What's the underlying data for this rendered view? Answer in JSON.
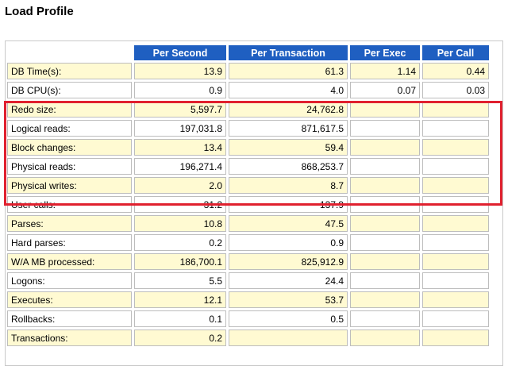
{
  "title": "Load Profile",
  "columns": [
    "Per Second",
    "Per Transaction",
    "Per Exec",
    "Per Call"
  ],
  "rows": [
    {
      "label": "DB Time(s):",
      "cells": [
        "13.9",
        "61.3",
        "1.14",
        "0.44"
      ]
    },
    {
      "label": "DB CPU(s):",
      "cells": [
        "0.9",
        "4.0",
        "0.07",
        "0.03"
      ]
    },
    {
      "label": "Redo size:",
      "cells": [
        "5,597.7",
        "24,762.8",
        "",
        ""
      ]
    },
    {
      "label": "Logical reads:",
      "cells": [
        "197,031.8",
        "871,617.5",
        "",
        ""
      ]
    },
    {
      "label": "Block changes:",
      "cells": [
        "13.4",
        "59.4",
        "",
        ""
      ]
    },
    {
      "label": "Physical reads:",
      "cells": [
        "196,271.4",
        "868,253.7",
        "",
        ""
      ]
    },
    {
      "label": "Physical writes:",
      "cells": [
        "2.0",
        "8.7",
        "",
        ""
      ]
    },
    {
      "label": "User calls:",
      "cells": [
        "31.2",
        "137.9",
        "",
        ""
      ]
    },
    {
      "label": "Parses:",
      "cells": [
        "10.8",
        "47.5",
        "",
        ""
      ]
    },
    {
      "label": "Hard parses:",
      "cells": [
        "0.2",
        "0.9",
        "",
        ""
      ]
    },
    {
      "label": "W/A MB processed:",
      "cells": [
        "186,700.1",
        "825,912.9",
        "",
        ""
      ]
    },
    {
      "label": "Logons:",
      "cells": [
        "5.5",
        "24.4",
        "",
        ""
      ]
    },
    {
      "label": "Executes:",
      "cells": [
        "12.1",
        "53.7",
        "",
        ""
      ]
    },
    {
      "label": "Rollbacks:",
      "cells": [
        "0.1",
        "0.5",
        "",
        ""
      ]
    },
    {
      "label": "Transactions:",
      "cells": [
        "0.2",
        "",
        "",
        ""
      ]
    }
  ],
  "colors": {
    "header_bg": "#1f5fc1",
    "row_odd_bg": "#fffad2",
    "row_even_bg": "#ffffff",
    "highlight_border": "#e0202e"
  }
}
